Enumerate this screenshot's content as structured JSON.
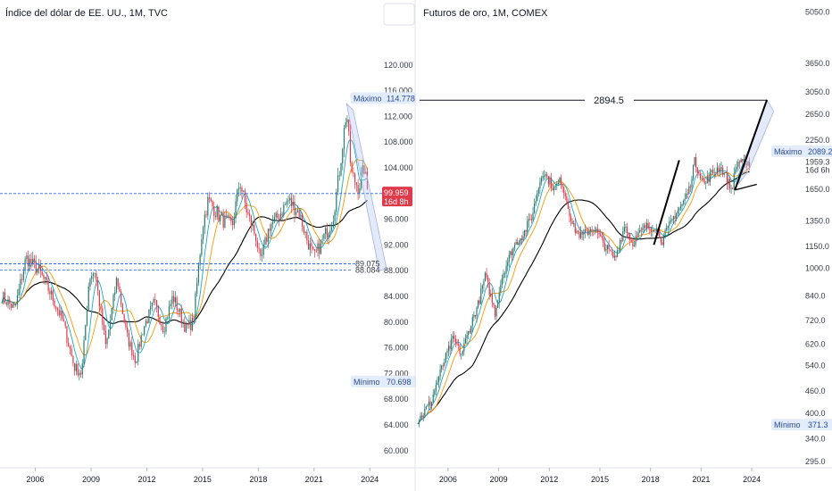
{
  "chart_data": [
    {
      "type": "candlestick",
      "title": "Índice del dólar de EE. UU., 1M, TVC",
      "y_scale": "linear",
      "ylim": [
        59,
        124
      ],
      "y_ticks": [
        "60.000",
        "64.000",
        "68.000",
        "72.000",
        "76.000",
        "80.000",
        "84.000",
        "88.000",
        "92.000",
        "96.000",
        "100.000",
        "104.000",
        "108.000",
        "112.000",
        "116.000",
        "120.000"
      ],
      "x_ticks": [
        "2006",
        "2009",
        "2012",
        "2015",
        "2018",
        "2021",
        "2024"
      ],
      "x_range": [
        2004.1,
        2026.1
      ],
      "price_label": {
        "value": "99.959",
        "sub": "16d 8h",
        "y": 99.959
      },
      "max_label": {
        "text": "Máximo",
        "value": "114.778",
        "y": 114.778
      },
      "min_label": {
        "text": "Mínimo",
        "value": "70.698",
        "y": 70.698
      },
      "levels": [
        {
          "value": "89.075",
          "y": 89.075
        },
        {
          "value": "88.084",
          "y": 88.084
        }
      ],
      "hline": 100.0,
      "projection": [
        [
          2022.75,
          114.0
        ],
        [
          2023.5,
          97.0
        ],
        [
          2024.5,
          88.0
        ]
      ],
      "path": [
        [
          2004.2,
          84
        ],
        [
          2004.9,
          82
        ],
        [
          2005.5,
          90
        ],
        [
          2006.2,
          88
        ],
        [
          2006.9,
          84
        ],
        [
          2007.5,
          80
        ],
        [
          2008.1,
          73
        ],
        [
          2008.5,
          72
        ],
        [
          2008.9,
          87
        ],
        [
          2009.2,
          88
        ],
        [
          2009.8,
          76
        ],
        [
          2010.4,
          87
        ],
        [
          2010.9,
          78
        ],
        [
          2011.4,
          74
        ],
        [
          2011.8,
          79
        ],
        [
          2012.4,
          83
        ],
        [
          2012.9,
          79
        ],
        [
          2013.4,
          84
        ],
        [
          2014.1,
          79
        ],
        [
          2014.5,
          80
        ],
        [
          2015.0,
          95
        ],
        [
          2015.3,
          99
        ],
        [
          2016.0,
          96
        ],
        [
          2016.6,
          95
        ],
        [
          2017.0,
          102
        ],
        [
          2017.4,
          97
        ],
        [
          2017.9,
          93
        ],
        [
          2018.1,
          89
        ],
        [
          2018.6,
          95
        ],
        [
          2019.0,
          96
        ],
        [
          2019.6,
          99
        ],
        [
          2020.2,
          97
        ],
        [
          2020.6,
          93
        ],
        [
          2021.0,
          90
        ],
        [
          2021.5,
          93
        ],
        [
          2022.0,
          96
        ],
        [
          2022.3,
          102
        ],
        [
          2022.75,
          113
        ],
        [
          2023.0,
          103
        ],
        [
          2023.4,
          101
        ],
        [
          2023.7,
          104
        ],
        [
          2023.9,
          100
        ]
      ],
      "series": [
        {
          "name": "",
          "color": "#2962ff",
          "style": "dashed",
          "y_const": 89.075
        },
        {
          "name": "",
          "color": "#000000",
          "smooth": 40
        },
        {
          "name": "",
          "color": "#ff9800",
          "smooth": 14
        },
        {
          "name": "",
          "color": "#1ba9c9",
          "smooth": 7
        }
      ]
    },
    {
      "type": "candlestick",
      "title": "Futuros de oro, 1M, COMEX",
      "y_scale": "log",
      "ylim": [
        285,
        5300
      ],
      "y_ticks": [
        "295.0",
        "340.0",
        "400.0",
        "460.0",
        "540.0",
        "620.0",
        "720.0",
        "840.0",
        "1000.0",
        "1150.0",
        "1350.0",
        "1650.0",
        "1959.3",
        "2250.0",
        "2650.0",
        "3050.0",
        "3650.0",
        "5050.0"
      ],
      "y_tick_values": [
        295,
        340,
        400,
        460,
        540,
        620,
        720,
        840,
        1000,
        1150,
        1350,
        1650,
        1959.3,
        2250,
        2650,
        3050,
        3650,
        5050
      ],
      "x_ticks": [
        "2006",
        "2009",
        "2012",
        "2015",
        "2018",
        "2021",
        "2024"
      ],
      "x_range": [
        2004.1,
        2026.8
      ],
      "max_label": {
        "text": "Máximo",
        "value": "2089.2",
        "y": 2089.2
      },
      "min_label": {
        "text": "Mínimo",
        "value": "371.3",
        "y": 371.3
      },
      "current": {
        "value": "1959.3",
        "sub": "16d 6h"
      },
      "target": {
        "value": "2894.5",
        "y": 2894.5
      },
      "trendlines": [
        {
          "from": [
            2018.2,
            1160
          ],
          "to": [
            2019.7,
            1980
          ]
        },
        {
          "from": [
            2023.0,
            1640
          ],
          "to": [
            2024.9,
            2900
          ]
        }
      ],
      "projection": [
        [
          2023.2,
          1700
        ],
        [
          2024.9,
          2900
        ],
        [
          2025.3,
          2700
        ],
        [
          2023.8,
          1850
        ]
      ],
      "path": [
        [
          2004.2,
          380
        ],
        [
          2005.0,
          430
        ],
        [
          2006.3,
          640
        ],
        [
          2006.8,
          580
        ],
        [
          2007.8,
          800
        ],
        [
          2008.2,
          950
        ],
        [
          2008.8,
          750
        ],
        [
          2009.2,
          950
        ],
        [
          2009.9,
          1150
        ],
        [
          2010.5,
          1250
        ],
        [
          2011.0,
          1400
        ],
        [
          2011.6,
          1850
        ],
        [
          2012.3,
          1650
        ],
        [
          2012.7,
          1750
        ],
        [
          2013.4,
          1300
        ],
        [
          2013.9,
          1220
        ],
        [
          2014.6,
          1300
        ],
        [
          2015.3,
          1150
        ],
        [
          2015.9,
          1060
        ],
        [
          2016.5,
          1320
        ],
        [
          2016.9,
          1170
        ],
        [
          2017.7,
          1300
        ],
        [
          2018.3,
          1300
        ],
        [
          2018.7,
          1190
        ],
        [
          2019.5,
          1420
        ],
        [
          2019.9,
          1500
        ],
        [
          2020.3,
          1650
        ],
        [
          2020.6,
          1970
        ],
        [
          2021.2,
          1700
        ],
        [
          2021.6,
          1820
        ],
        [
          2022.1,
          1900
        ],
        [
          2022.3,
          1850
        ],
        [
          2022.8,
          1640
        ],
        [
          2023.1,
          1920
        ],
        [
          2023.4,
          2000
        ],
        [
          2023.7,
          1870
        ],
        [
          2023.9,
          1960
        ]
      ],
      "series": [
        {
          "name": "",
          "color": "#000000",
          "smooth": 40
        },
        {
          "name": "",
          "color": "#ff9800",
          "smooth": 14
        },
        {
          "name": "",
          "color": "#1ba9c9",
          "smooth": 7
        }
      ]
    }
  ]
}
